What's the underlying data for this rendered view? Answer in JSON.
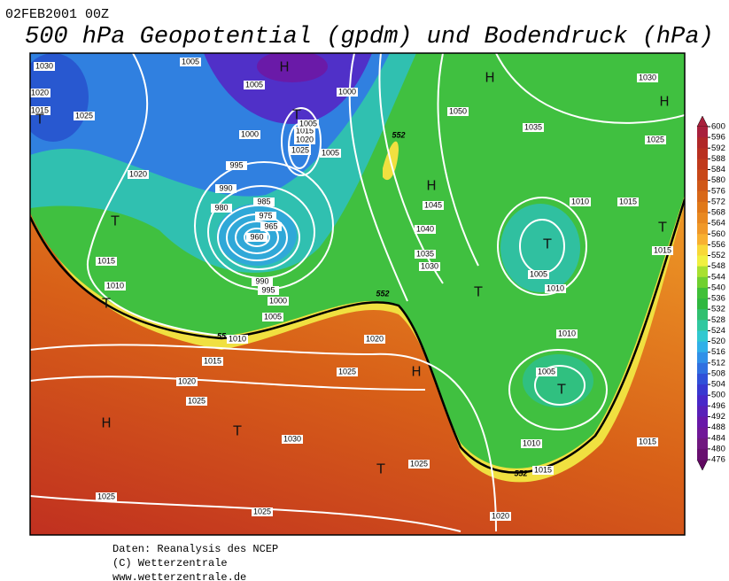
{
  "header": {
    "date": "02FEB2001 00Z",
    "title": "500 hPa Geopotential (gpdm) und Bodendruck (hPa)"
  },
  "colorbar": {
    "labels": [
      600,
      596,
      592,
      588,
      584,
      580,
      576,
      572,
      568,
      564,
      560,
      556,
      552,
      548,
      544,
      540,
      536,
      532,
      528,
      524,
      520,
      516,
      512,
      508,
      504,
      500,
      496,
      492,
      488,
      484,
      480,
      476
    ],
    "colors": [
      "#a8203c",
      "#b02828",
      "#b83020",
      "#c03a1c",
      "#c84818",
      "#d05818",
      "#d86818",
      "#e07818",
      "#e88820",
      "#f09828",
      "#f8b030",
      "#f8d838",
      "#f0f040",
      "#a8e030",
      "#70d030",
      "#40c038",
      "#30b840",
      "#30c070",
      "#30c8a0",
      "#30c8d0",
      "#30b0e8",
      "#3090e8",
      "#3070e0",
      "#3050d8",
      "#3838d0",
      "#4828c8",
      "#5820b8",
      "#6818a8",
      "#701898",
      "#701880",
      "#681070",
      "#600860"
    ]
  },
  "map": {
    "isobar_labels": [
      1030,
      1020,
      1015,
      1025,
      1005,
      1005,
      1000,
      1000,
      995,
      990,
      980,
      985,
      975,
      965,
      960,
      990,
      995,
      1000,
      1005,
      1010,
      1020,
      1015,
      1010,
      1015,
      1020,
      1025,
      1025,
      1020,
      1030,
      1025,
      1025,
      1025,
      1020,
      1010,
      1015,
      1015,
      1005,
      1010,
      1010,
      1005,
      1010,
      1015,
      1015,
      1025,
      1030,
      1035,
      1050,
      1045,
      1040,
      1035,
      1030,
      1025,
      1020,
      1015,
      1005,
      1005
    ],
    "centers": [
      "H",
      "H",
      "H",
      "T",
      "T",
      "T",
      "H",
      "T",
      "T",
      "T",
      "T",
      "H",
      "T",
      "H",
      "T",
      "T"
    ],
    "contour_552_labels": [
      "552",
      "552",
      "552",
      "55"
    ]
  },
  "footer": {
    "lines": [
      "Daten: Reanalysis des NCEP",
      "(C) Wetterzentrale",
      "www.wetterzentrale.de"
    ]
  }
}
